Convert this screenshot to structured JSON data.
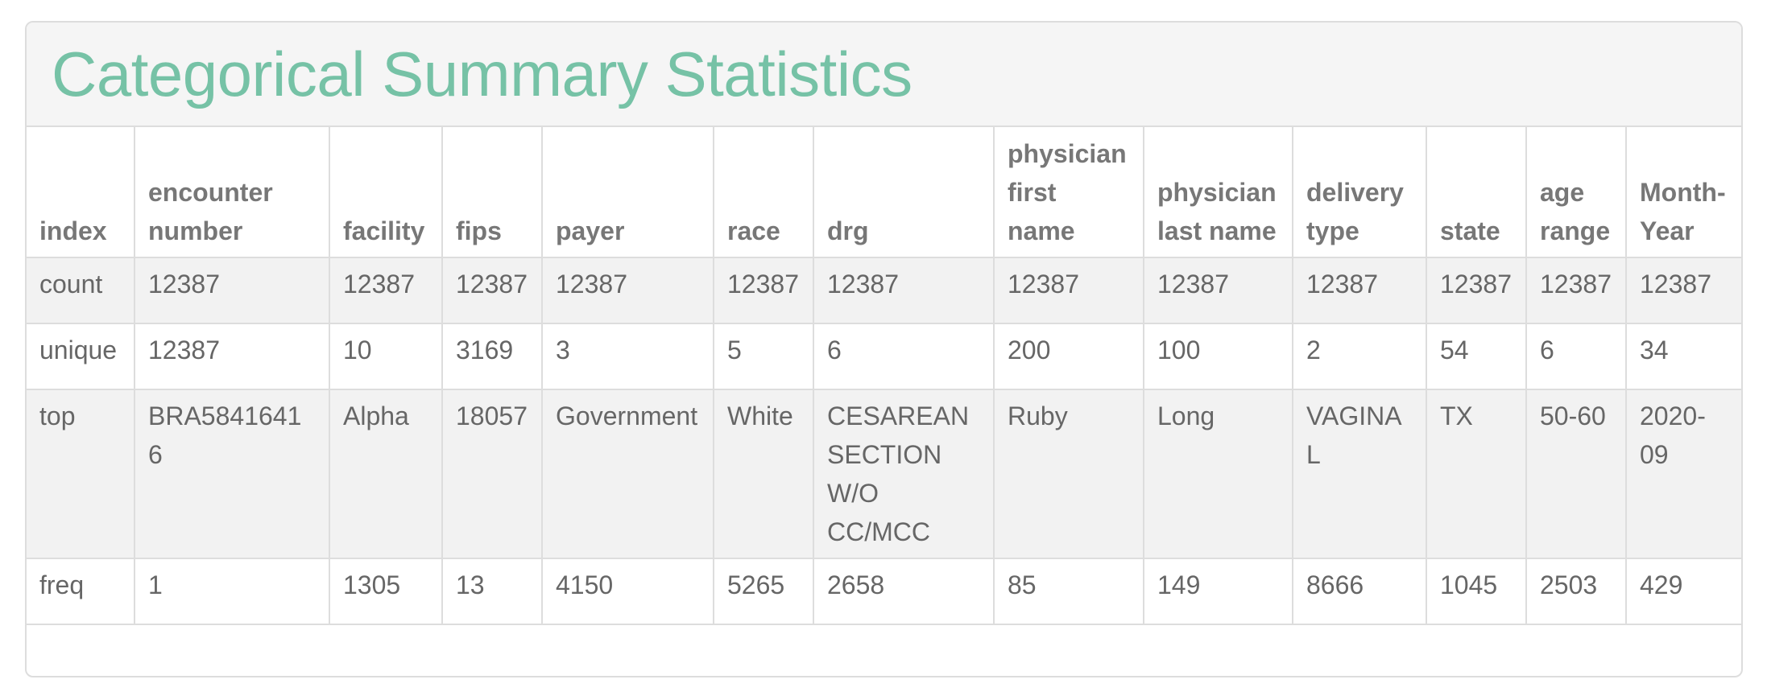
{
  "panel": {
    "title": "Categorical Summary Statistics"
  },
  "table": {
    "headers": [
      "index",
      "encounter number",
      "facility",
      "fips",
      "payer",
      "race",
      "drg",
      "physician first name",
      "physician last name",
      "delivery type",
      "state",
      "age range",
      "Month-Year"
    ],
    "rows": [
      [
        "count",
        "12387",
        "12387",
        "12387",
        "12387",
        "12387",
        "12387",
        "12387",
        "12387",
        "12387",
        "12387",
        "12387",
        "12387"
      ],
      [
        "unique",
        "12387",
        "10",
        "3169",
        "3",
        "5",
        "6",
        "200",
        "100",
        "2",
        "54",
        "6",
        "34"
      ],
      [
        "top",
        "BRA58416416",
        "Alpha",
        "18057",
        "Government",
        "White",
        "CESAREAN SECTION W/O CC/MCC",
        "Ruby",
        "Long",
        "VAGINAL",
        "TX",
        "50-60",
        "2020-09"
      ],
      [
        "freq",
        "1",
        "1305",
        "13",
        "4150",
        "5265",
        "2658",
        "85",
        "149",
        "8666",
        "1045",
        "2503",
        "429"
      ]
    ]
  },
  "colors": {
    "title": "#76c2a6",
    "heading_bg": "#f5f5f5",
    "stripe": "#f2f2f2",
    "border": "#dddddd"
  }
}
